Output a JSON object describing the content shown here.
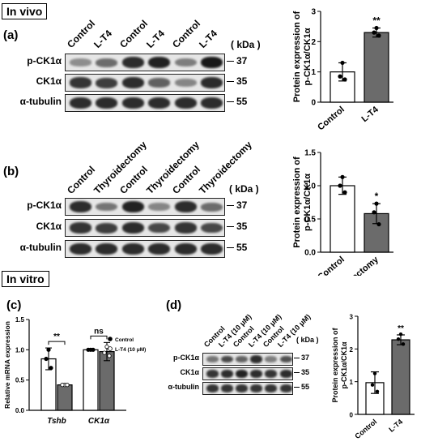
{
  "sections": {
    "invivo": "In vivo",
    "invitro": "In vitro"
  },
  "panels": {
    "a": {
      "label": "(a)",
      "kda": "( kDa )",
      "lanes": [
        "Control",
        "L-T4",
        "Control",
        "L-T4",
        "Control",
        "L-T4"
      ],
      "rows": [
        {
          "label": "p-CK1α",
          "mw": "37",
          "intensity": [
            0.3,
            0.5,
            0.85,
            0.9,
            0.4,
            0.95
          ]
        },
        {
          "label": "CK1α",
          "mw": "35",
          "intensity": [
            0.8,
            0.75,
            0.85,
            0.55,
            0.35,
            0.85
          ]
        },
        {
          "label": "α-tubulin",
          "mw": "55",
          "intensity": [
            0.85,
            0.85,
            0.85,
            0.85,
            0.85,
            0.85
          ]
        }
      ]
    },
    "b": {
      "label": "(b)",
      "kda": "( kDa )",
      "lanes": [
        "Control",
        "Thyroidectomy",
        "Control",
        "Thyroidectomy",
        "Control",
        "Thyroidectomy"
      ],
      "rows": [
        {
          "label": "p-CK1α",
          "mw": "37",
          "intensity": [
            0.85,
            0.45,
            0.9,
            0.35,
            0.85,
            0.5
          ]
        },
        {
          "label": "CK1α",
          "mw": "35",
          "intensity": [
            0.8,
            0.75,
            0.85,
            0.7,
            0.8,
            0.7
          ]
        },
        {
          "label": "α-tubulin",
          "mw": "55",
          "intensity": [
            0.85,
            0.85,
            0.85,
            0.85,
            0.85,
            0.85
          ]
        }
      ]
    },
    "c": {
      "label": "(c)",
      "legend": [
        "Control",
        "L-T4 (10 μM)"
      ]
    },
    "d": {
      "label": "(d)",
      "kda": "( kDa )",
      "lanes": [
        "Control",
        "L-T4 (10 μM)",
        "Control",
        "L-T4 (10 μM)",
        "Control",
        "L-T4 (10 μM)"
      ],
      "rows": [
        {
          "label": "p-CK1α",
          "mw": "37",
          "intensity": [
            0.45,
            0.7,
            0.55,
            0.85,
            0.4,
            0.65
          ]
        },
        {
          "label": "CK1α",
          "mw": "35",
          "intensity": [
            0.8,
            0.85,
            0.9,
            0.85,
            0.8,
            0.85
          ]
        },
        {
          "label": "α-tubulin",
          "mw": "55",
          "intensity": [
            0.8,
            0.8,
            0.8,
            0.8,
            0.8,
            0.8
          ]
        }
      ]
    }
  },
  "chart_data": [
    {
      "id": "chart-a",
      "type": "bar",
      "categories": [
        "Control",
        "L-T4"
      ],
      "values": [
        1.0,
        2.3
      ],
      "errors": [
        0.3,
        0.15
      ],
      "points": [
        [
          1.3,
          0.85,
          0.75
        ],
        [
          2.45,
          2.3,
          2.2
        ]
      ],
      "ylabel": "Protein expression of\np-CK1α/CK1α",
      "ylim": [
        0,
        3
      ],
      "yticks": [
        0,
        1,
        2,
        3
      ],
      "significance": "**",
      "colors": [
        "#ffffff",
        "#6b6b6b"
      ]
    },
    {
      "id": "chart-b",
      "type": "bar",
      "categories": [
        "Control",
        "Thyroidectomy"
      ],
      "values": [
        1.0,
        0.58
      ],
      "errors": [
        0.13,
        0.15
      ],
      "points": [
        [
          1.13,
          1.0,
          0.9
        ],
        [
          0.73,
          0.6,
          0.42
        ]
      ],
      "ylabel": "Protein expression of\np-CK1α/CK1α",
      "ylim": [
        0,
        1.5
      ],
      "yticks": [
        0.0,
        0.5,
        1.0,
        1.5
      ],
      "significance": "*",
      "colors": [
        "#ffffff",
        "#6b6b6b"
      ]
    },
    {
      "id": "chart-c",
      "type": "bar",
      "categories": [
        "Tshb",
        "CK1α"
      ],
      "series": [
        {
          "name": "Control",
          "values": [
            0.85,
            1.0
          ],
          "errors": [
            0.18,
            0.02
          ],
          "points": [
            [
              1.0,
              0.85,
              0.7
            ],
            [
              1.0,
              1.0,
              1.0
            ]
          ]
        },
        {
          "name": "L-T4 (10 μM)",
          "values": [
            0.42,
            0.97
          ],
          "errors": [
            0.02,
            0.15
          ],
          "points": [
            [
              0.42,
              0.42,
              0.42
            ],
            [
              1.05,
              0.95,
              0.9
            ]
          ]
        }
      ],
      "ylabel": "Relative mRNA expression",
      "ylim": [
        0,
        1.5
      ],
      "yticks": [
        0.0,
        0.5,
        1.0,
        1.5
      ],
      "significance": [
        "**",
        "ns"
      ],
      "colors": [
        "#ffffff",
        "#6b6b6b"
      ]
    },
    {
      "id": "chart-d",
      "type": "bar",
      "categories": [
        "Control",
        "L-T4"
      ],
      "values": [
        0.97,
        2.28
      ],
      "errors": [
        0.33,
        0.15
      ],
      "points": [
        [
          1.25,
          0.9,
          0.7
        ],
        [
          2.45,
          2.3,
          2.15
        ]
      ],
      "ylabel": "Protein expression of\np-CK1α/CK1α",
      "ylim": [
        0,
        3
      ],
      "yticks": [
        0,
        1,
        2,
        3
      ],
      "significance": "**",
      "colors": [
        "#ffffff",
        "#6b6b6b"
      ]
    }
  ]
}
